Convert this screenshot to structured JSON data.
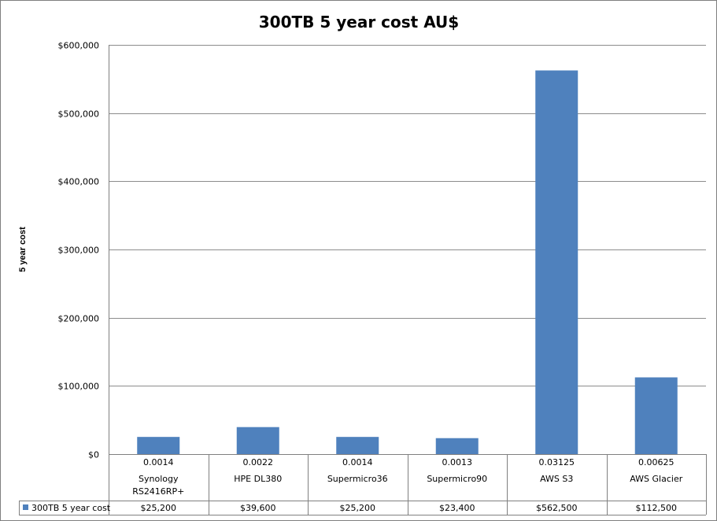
{
  "chart_data": {
    "type": "bar",
    "title": "300TB 5 year cost AU$",
    "ylabel": "5 year cost",
    "xlabel": "",
    "ylim": [
      0,
      600000
    ],
    "yticks": [
      "$0",
      "$100,000",
      "$200,000",
      "$300,000",
      "$400,000",
      "$500,000",
      "$600,000"
    ],
    "grid": true,
    "categories": [
      {
        "rate": "0.0014",
        "name_lines": [
          "Synology",
          "RS2416RP+"
        ]
      },
      {
        "rate": "0.0022",
        "name_lines": [
          "HPE DL380"
        ]
      },
      {
        "rate": "0.0014",
        "name_lines": [
          "Supermicro36"
        ]
      },
      {
        "rate": "0.0013",
        "name_lines": [
          "Supermicro90"
        ]
      },
      {
        "rate": "0.03125",
        "name_lines": [
          "AWS S3"
        ]
      },
      {
        "rate": "0.00625",
        "name_lines": [
          "AWS Glacier"
        ]
      }
    ],
    "series": [
      {
        "name": "300TB 5 year cost",
        "color": "#4F81BD",
        "values": [
          25200,
          39600,
          25200,
          23400,
          562500,
          112500
        ],
        "value_labels": [
          "$25,200",
          "$39,600",
          "$25,200",
          "$23,400",
          "$562,500",
          "$112,500"
        ]
      }
    ],
    "legend": "data-table-left"
  }
}
